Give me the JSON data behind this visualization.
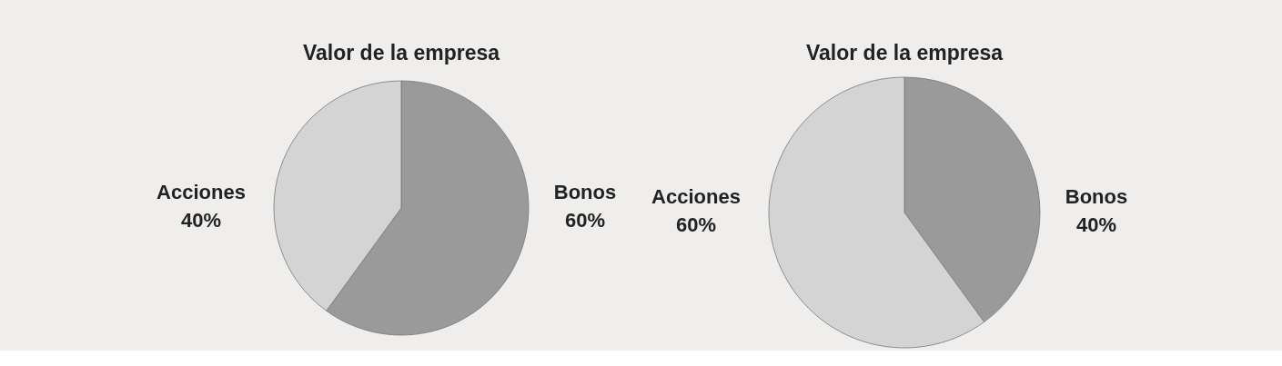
{
  "chart_data": [
    {
      "type": "pie",
      "title": "Valor de la empresa",
      "categories": [
        "Bonos",
        "Acciones"
      ],
      "values": [
        60,
        40
      ],
      "colors": [
        "#9a9a9a",
        "#d4d4d4"
      ],
      "value_labels": [
        "60%",
        "40%"
      ]
    },
    {
      "type": "pie",
      "title": "Valor de la empresa",
      "categories": [
        "Bonos",
        "Acciones"
      ],
      "values": [
        40,
        60
      ],
      "colors": [
        "#9a9a9a",
        "#d4d4d4"
      ],
      "value_labels": [
        "40%",
        "60%"
      ]
    }
  ]
}
